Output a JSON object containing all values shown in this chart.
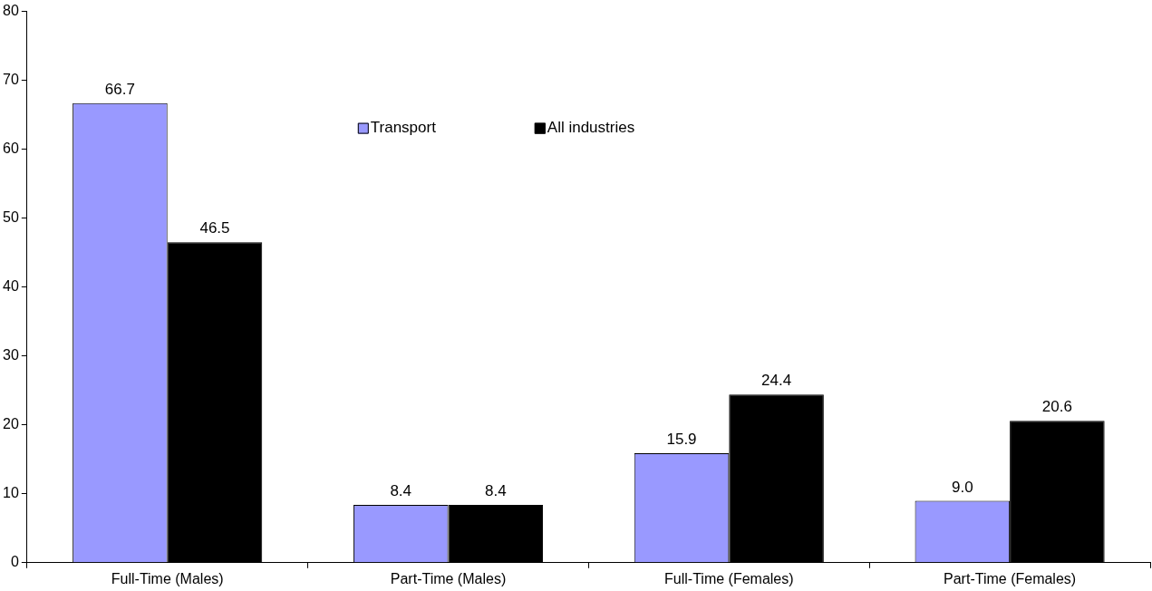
{
  "chart_data": {
    "type": "bar",
    "categories": [
      "Full-Time (Males)",
      "Part-Time (Males)",
      "Full-Time (Females)",
      "Part-Time (Females)"
    ],
    "series": [
      {
        "name": "Transport",
        "color": "#9999ff",
        "values": [
          66.7,
          8.4,
          15.9,
          9.0
        ],
        "value_labels": [
          "66.7",
          "8.4",
          "15.9",
          "9.0"
        ]
      },
      {
        "name": "All industries",
        "color": "#000000",
        "values": [
          46.5,
          8.4,
          24.4,
          20.6
        ],
        "value_labels": [
          "46.5",
          "8.4",
          "24.4",
          "20.6"
        ]
      }
    ],
    "ylim": [
      0,
      80
    ],
    "yticks": [
      0,
      10,
      20,
      30,
      40,
      50,
      60,
      70,
      80
    ],
    "grid": false,
    "legend": "top"
  }
}
